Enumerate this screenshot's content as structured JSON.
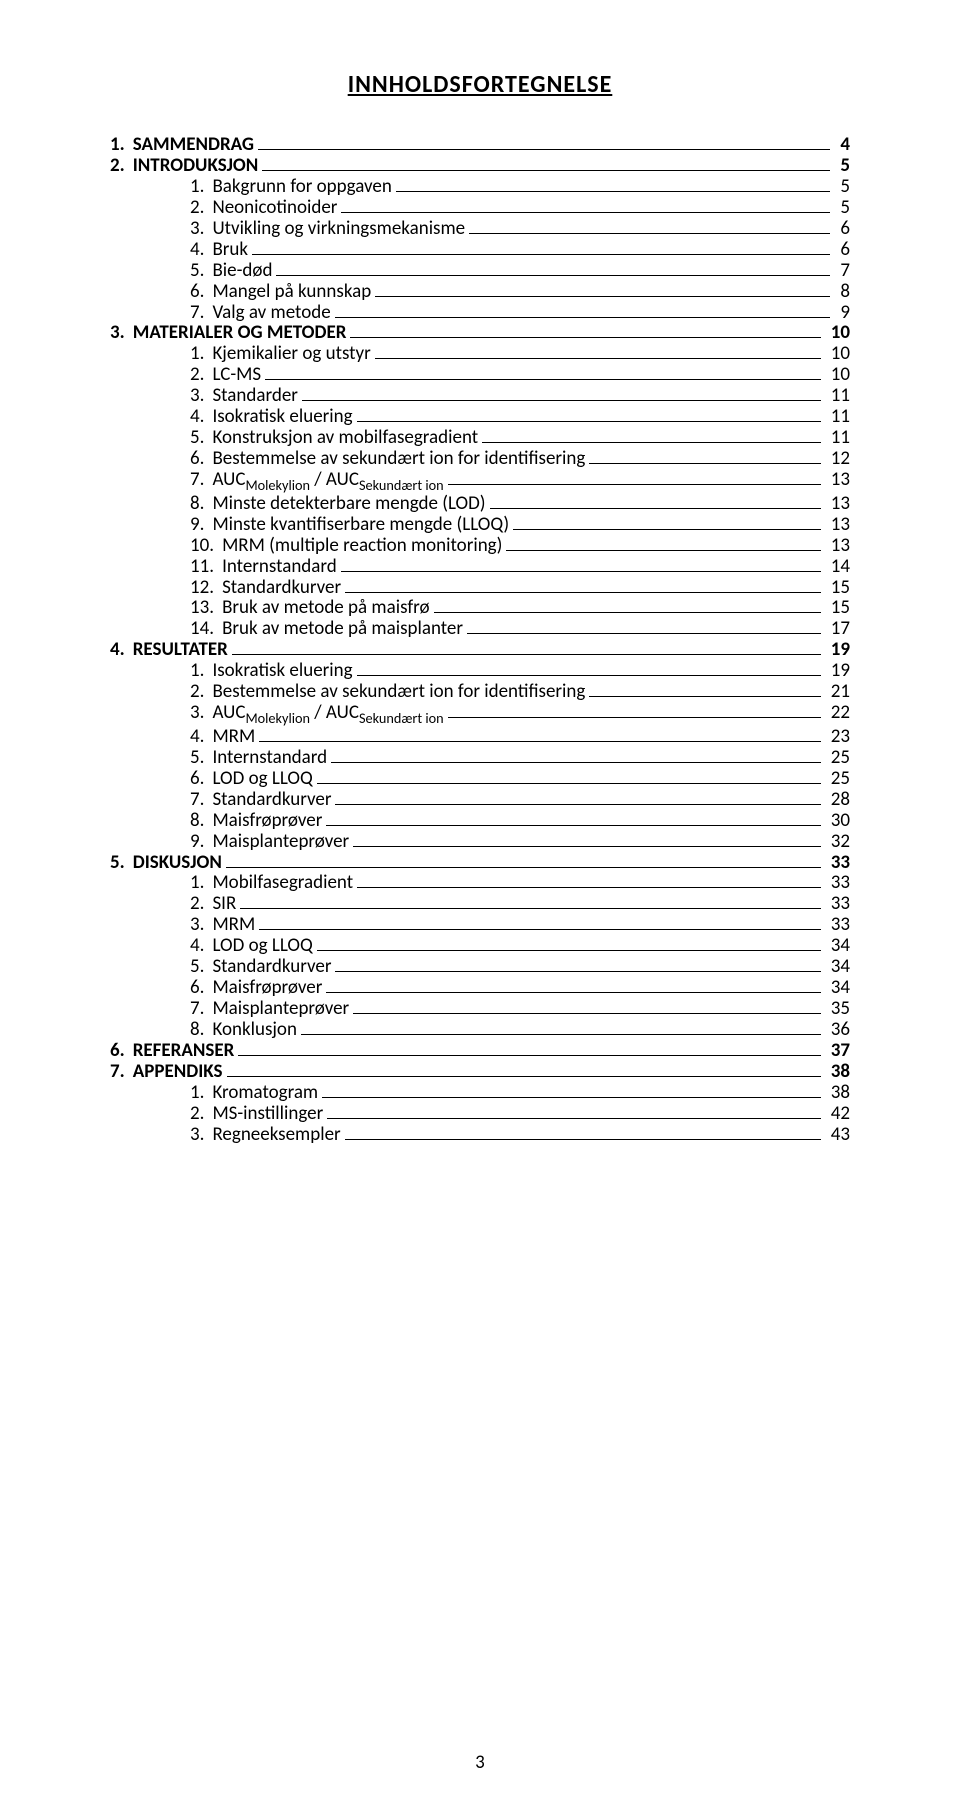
{
  "title": "INNHOLDSFORTEGNELSE",
  "page_number": "3",
  "toc": [
    {
      "level": 1,
      "num": "1.",
      "label": "SAMMENDRAG",
      "page": "4",
      "bold": true
    },
    {
      "level": 1,
      "num": "2.",
      "label": "INTRODUKSJON",
      "page": "5",
      "bold": true
    },
    {
      "level": 2,
      "num": "1.",
      "label": "Bakgrunn for oppgaven",
      "page": "5"
    },
    {
      "level": 2,
      "num": "2.",
      "label": "Neonicotinoider",
      "page": "5"
    },
    {
      "level": 2,
      "num": "3.",
      "label": "Utvikling og virkningsmekanisme",
      "page": "6"
    },
    {
      "level": 2,
      "num": "4.",
      "label": "Bruk",
      "page": "6"
    },
    {
      "level": 2,
      "num": "5.",
      "label": "Bie-død",
      "page": "7"
    },
    {
      "level": 2,
      "num": "6.",
      "label": "Mangel på kunnskap",
      "page": "8"
    },
    {
      "level": 2,
      "num": "7.",
      "label": "Valg av metode",
      "page": "9"
    },
    {
      "level": 1,
      "num": "3.",
      "label": "MATERIALER OG METODER",
      "page": "10",
      "bold": true
    },
    {
      "level": 2,
      "num": "1.",
      "label": "Kjemikalier og utstyr",
      "page": "10"
    },
    {
      "level": 2,
      "num": "2.",
      "label": "LC-MS",
      "page": "10"
    },
    {
      "level": 2,
      "num": "3.",
      "label": "Standarder",
      "page": "11"
    },
    {
      "level": 2,
      "num": "4.",
      "label": "Isokratisk eluering",
      "page": "11"
    },
    {
      "level": 2,
      "num": "5.",
      "label": "Konstruksjon av mobilfasegradient",
      "page": "11"
    },
    {
      "level": 2,
      "num": "6.",
      "label": "Bestemmelse av sekundært ion for identifisering",
      "page": "12"
    },
    {
      "level": 2,
      "num": "7.",
      "label_html": "AUC<span class=\"sub\">Molekylion</span> / AUC<span class=\"sub\">Sekundært ion</span>",
      "page": "13"
    },
    {
      "level": 2,
      "num": "8.",
      "label": "Minste detekterbare mengde (LOD)",
      "page": "13"
    },
    {
      "level": 2,
      "num": "9.",
      "label": "Minste kvantifiserbare mengde (LLOQ)",
      "page": "13"
    },
    {
      "level": 2,
      "num": "10.",
      "label": "MRM (multiple reaction monitoring)",
      "page": "13"
    },
    {
      "level": 2,
      "num": "11.",
      "label": "Internstandard",
      "page": "14"
    },
    {
      "level": 2,
      "num": "12.",
      "label": "Standardkurver",
      "page": "15"
    },
    {
      "level": 2,
      "num": "13.",
      "label": "Bruk av metode på maisfrø",
      "page": "15"
    },
    {
      "level": 2,
      "num": "14.",
      "label": "Bruk av metode på maisplanter",
      "page": "17"
    },
    {
      "level": 1,
      "num": "4.",
      "label": "RESULTATER",
      "page": "19",
      "bold": true
    },
    {
      "level": 2,
      "num": "1.",
      "label": "Isokratisk eluering",
      "page": "19"
    },
    {
      "level": 2,
      "num": "2.",
      "label": "Bestemmelse av sekundært ion for identifisering",
      "page": "21"
    },
    {
      "level": 2,
      "num": "3.",
      "label_html": "AUC<span class=\"sub\">Molekylion</span> / AUC<span class=\"sub\">Sekundært ion</span>",
      "page": "22"
    },
    {
      "level": 2,
      "num": "4.",
      "label": "MRM",
      "page": "23"
    },
    {
      "level": 2,
      "num": "5.",
      "label": "Internstandard",
      "page": "25"
    },
    {
      "level": 2,
      "num": "6.",
      "label": "LOD og LLOQ",
      "page": "25"
    },
    {
      "level": 2,
      "num": "7.",
      "label": "Standardkurver",
      "page": "28"
    },
    {
      "level": 2,
      "num": "8.",
      "label": "Maisfrøprøver",
      "page": "30"
    },
    {
      "level": 2,
      "num": "9.",
      "label": "Maisplanteprøver",
      "page": "32"
    },
    {
      "level": 1,
      "num": "5.",
      "label": "DISKUSJON",
      "page": "33",
      "bold": true
    },
    {
      "level": 2,
      "num": "1.",
      "label": "Mobilfasegradient",
      "page": "33"
    },
    {
      "level": 2,
      "num": "2.",
      "label": "SIR",
      "page": "33"
    },
    {
      "level": 2,
      "num": "3.",
      "label": "MRM",
      "page": "33"
    },
    {
      "level": 2,
      "num": "4.",
      "label": "LOD og LLOQ",
      "page": "34"
    },
    {
      "level": 2,
      "num": "5.",
      "label": "Standardkurver",
      "page": "34"
    },
    {
      "level": 2,
      "num": "6.",
      "label": "Maisfrøprøver",
      "page": "34"
    },
    {
      "level": 2,
      "num": "7.",
      "label": "Maisplanteprøver",
      "page": "35"
    },
    {
      "level": 2,
      "num": "8.",
      "label": "Konklusjon",
      "page": "36"
    },
    {
      "level": 1,
      "num": "6.",
      "label": "REFERANSER",
      "page": "37",
      "bold": true
    },
    {
      "level": 1,
      "num": "7.",
      "label": "APPENDIKS",
      "page": "38",
      "bold": true
    },
    {
      "level": 2,
      "num": "1.",
      "label": "Kromatogram",
      "page": "38"
    },
    {
      "level": 2,
      "num": "2.",
      "label": "MS-instillinger",
      "page": "42"
    },
    {
      "level": 2,
      "num": "3.",
      "label": "Regneeksempler",
      "page": "43"
    }
  ]
}
